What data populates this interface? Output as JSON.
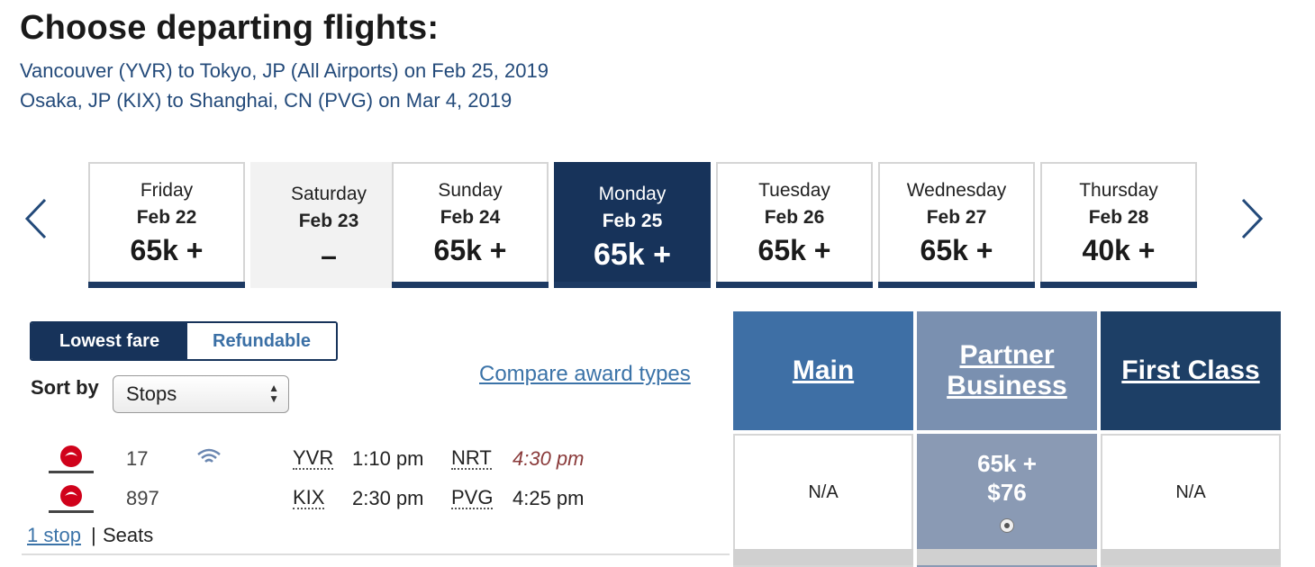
{
  "page": {
    "title": "Choose departing flights:",
    "routes": [
      "Vancouver (YVR) to Tokyo, JP (All Airports) on Feb 25, 2019",
      "Osaka, JP (KIX) to Shanghai, CN (PVG) on Mar 4, 2019"
    ]
  },
  "icons": {
    "prev": "chevron-left-icon",
    "next": "chevron-right-icon",
    "wifi": "wifi-icon",
    "airline_logo": "japan-airlines-logo"
  },
  "date_strip": {
    "days": [
      {
        "day": "Friday",
        "date": "Feb 22",
        "price": "65k +"
      },
      {
        "day": "Saturday",
        "date": "Feb 23",
        "price": "–"
      },
      {
        "day": "Sunday",
        "date": "Feb 24",
        "price": "65k +"
      },
      {
        "day": "Monday",
        "date": "Feb 25",
        "price": "65k +"
      },
      {
        "day": "Tuesday",
        "date": "Feb 26",
        "price": "65k +"
      },
      {
        "day": "Wednesday",
        "date": "Feb 27",
        "price": "65k +"
      },
      {
        "day": "Thursday",
        "date": "Feb 28",
        "price": "40k +"
      }
    ],
    "selected": "Monday"
  },
  "fare_toggle": {
    "lowest": "Lowest fare",
    "refundable": "Refundable",
    "active": "Lowest fare"
  },
  "sort": {
    "label": "Sort by",
    "value": "Stops"
  },
  "compare_link": "Compare award types",
  "cabins": {
    "main": "Main",
    "partner": [
      "Partner",
      "Business"
    ],
    "first": "First Class"
  },
  "flight": {
    "segments": [
      {
        "number": "17",
        "from": "YVR",
        "depart": "1:10 pm",
        "to": "NRT",
        "arrive": "4:30 pm"
      },
      {
        "number": "897",
        "from": "KIX",
        "depart": "2:30 pm",
        "to": "PVG",
        "arrive": "4:25 pm"
      }
    ],
    "stops_link": "1 stop",
    "separator": "|",
    "seats": "Seats",
    "fares": {
      "main": "N/A",
      "partner_points": "65k +",
      "partner_cash": "$76",
      "first": "N/A"
    }
  },
  "colors": {
    "navy": "#17335a",
    "main_blue": "#3e6fa5",
    "partner_gray_blue": "#7a90b0",
    "first_navy": "#1d3f66",
    "link_blue": "#3b73a8",
    "logo_red": "#d0021b"
  }
}
